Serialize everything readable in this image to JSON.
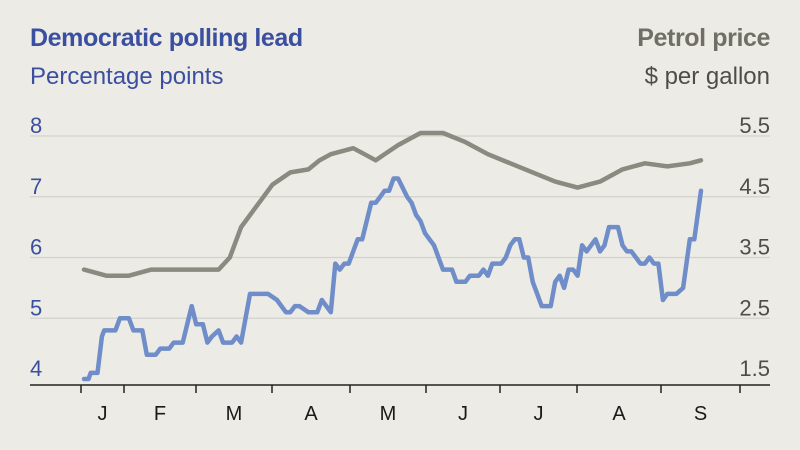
{
  "chart_data": {
    "type": "line",
    "title_left": "Democratic polling lead",
    "subtitle_left": "Percentage points",
    "title_right": "Petrol price",
    "subtitle_right": "$ per gallon",
    "left_axis": {
      "ticks": [
        "8",
        "7",
        "6",
        "5",
        "4"
      ],
      "ylim": [
        4,
        8
      ]
    },
    "right_axis": {
      "ticks": [
        "5.5",
        "4.5",
        "3.5",
        "2.5",
        "1.5"
      ],
      "ylim": [
        1.5,
        5.5
      ]
    },
    "x_labels": [
      "J",
      "F",
      "M",
      "A",
      "M",
      "J",
      "J",
      "A",
      "S"
    ],
    "grid": true,
    "colors": {
      "polling": "#6f8dc9",
      "petrol": "#8a8a80",
      "left_text": "#3a4fa0",
      "right_text": "#4e4e47",
      "grid": "#d3d1ca",
      "axis": "#222222"
    },
    "series": [
      {
        "key": "polling",
        "axis": "left",
        "points": [
          [
            0.0,
            4.0
          ],
          [
            0.1,
            4.0
          ],
          [
            0.15,
            4.1
          ],
          [
            0.3,
            4.1
          ],
          [
            0.4,
            4.7
          ],
          [
            0.45,
            4.8
          ],
          [
            0.7,
            4.8
          ],
          [
            0.8,
            5.0
          ],
          [
            1.0,
            5.0
          ],
          [
            1.1,
            4.8
          ],
          [
            1.3,
            4.8
          ],
          [
            1.4,
            4.4
          ],
          [
            1.6,
            4.4
          ],
          [
            1.7,
            4.5
          ],
          [
            1.9,
            4.5
          ],
          [
            2.0,
            4.6
          ],
          [
            2.2,
            4.6
          ],
          [
            2.3,
            4.9
          ],
          [
            2.4,
            5.2
          ],
          [
            2.5,
            4.9
          ],
          [
            2.65,
            4.9
          ],
          [
            2.75,
            4.6
          ],
          [
            2.85,
            4.7
          ],
          [
            3.0,
            4.8
          ],
          [
            3.1,
            4.6
          ],
          [
            3.3,
            4.6
          ],
          [
            3.4,
            4.7
          ],
          [
            3.5,
            4.6
          ],
          [
            3.7,
            5.4
          ],
          [
            3.9,
            5.4
          ],
          [
            4.0,
            5.4
          ],
          [
            4.1,
            5.4
          ],
          [
            4.3,
            5.3
          ],
          [
            4.4,
            5.2
          ],
          [
            4.5,
            5.1
          ],
          [
            4.6,
            5.1
          ],
          [
            4.7,
            5.2
          ],
          [
            4.8,
            5.2
          ],
          [
            5.0,
            5.1
          ],
          [
            5.2,
            5.1
          ],
          [
            5.3,
            5.3
          ],
          [
            5.4,
            5.2
          ],
          [
            5.5,
            5.1
          ],
          [
            5.6,
            5.9
          ],
          [
            5.7,
            5.8
          ],
          [
            5.8,
            5.9
          ],
          [
            5.9,
            5.9
          ],
          [
            6.0,
            6.1
          ],
          [
            6.1,
            6.3
          ],
          [
            6.2,
            6.3
          ],
          [
            6.4,
            6.9
          ],
          [
            6.5,
            6.9
          ],
          [
            6.6,
            7.0
          ],
          [
            6.7,
            7.1
          ],
          [
            6.8,
            7.1
          ],
          [
            6.9,
            7.3
          ],
          [
            7.0,
            7.3
          ],
          [
            7.2,
            7.0
          ],
          [
            7.3,
            6.9
          ],
          [
            7.4,
            6.7
          ],
          [
            7.5,
            6.6
          ],
          [
            7.6,
            6.4
          ],
          [
            7.7,
            6.3
          ],
          [
            7.8,
            6.2
          ],
          [
            7.9,
            6.0
          ],
          [
            8.0,
            5.8
          ],
          [
            8.2,
            5.8
          ],
          [
            8.3,
            5.6
          ],
          [
            8.5,
            5.6
          ],
          [
            8.6,
            5.7
          ],
          [
            8.8,
            5.7
          ],
          [
            8.9,
            5.8
          ],
          [
            9.0,
            5.7
          ],
          [
            9.1,
            5.9
          ],
          [
            9.3,
            5.9
          ],
          [
            9.4,
            6.0
          ],
          [
            9.5,
            6.2
          ],
          [
            9.6,
            6.3
          ],
          [
            9.7,
            6.3
          ],
          [
            9.8,
            6.0
          ],
          [
            9.9,
            6.0
          ],
          [
            10.0,
            5.6
          ],
          [
            10.1,
            5.4
          ],
          [
            10.2,
            5.2
          ],
          [
            10.4,
            5.2
          ],
          [
            10.5,
            5.6
          ],
          [
            10.6,
            5.7
          ],
          [
            10.7,
            5.5
          ],
          [
            10.8,
            5.8
          ],
          [
            10.9,
            5.8
          ],
          [
            11.0,
            5.7
          ],
          [
            11.1,
            6.2
          ],
          [
            11.2,
            6.1
          ],
          [
            11.3,
            6.2
          ],
          [
            11.4,
            6.3
          ],
          [
            11.5,
            6.1
          ],
          [
            11.6,
            6.2
          ],
          [
            11.7,
            6.5
          ],
          [
            11.9,
            6.5
          ],
          [
            12.0,
            6.2
          ],
          [
            12.1,
            6.1
          ],
          [
            12.2,
            6.1
          ],
          [
            12.4,
            5.9
          ],
          [
            12.5,
            5.9
          ],
          [
            12.6,
            6.0
          ],
          [
            12.7,
            5.9
          ],
          [
            12.8,
            5.9
          ],
          [
            12.9,
            5.3
          ],
          [
            13.0,
            5.4
          ],
          [
            13.2,
            5.4
          ],
          [
            13.35,
            5.5
          ],
          [
            13.5,
            6.3
          ],
          [
            13.6,
            6.3
          ],
          [
            13.75,
            7.1
          ]
        ]
      },
      {
        "key": "petrol",
        "axis": "right",
        "points": [
          [
            0.0,
            3.3
          ],
          [
            0.5,
            3.2
          ],
          [
            1.0,
            3.2
          ],
          [
            1.5,
            3.3
          ],
          [
            2.0,
            3.3
          ],
          [
            2.5,
            3.3
          ],
          [
            3.0,
            3.3
          ],
          [
            3.25,
            3.5
          ],
          [
            3.5,
            4.0
          ],
          [
            4.0,
            4.5
          ],
          [
            4.2,
            4.7
          ],
          [
            4.6,
            4.9
          ],
          [
            5.0,
            4.95
          ],
          [
            5.25,
            5.1
          ],
          [
            5.5,
            5.2
          ],
          [
            6.0,
            5.3
          ],
          [
            6.25,
            5.2
          ],
          [
            6.5,
            5.1
          ],
          [
            6.7,
            5.2
          ],
          [
            7.0,
            5.35
          ],
          [
            7.5,
            5.55
          ],
          [
            8.0,
            5.55
          ],
          [
            8.5,
            5.4
          ],
          [
            9.0,
            5.2
          ],
          [
            9.5,
            5.05
          ],
          [
            10.0,
            4.9
          ],
          [
            10.5,
            4.75
          ],
          [
            11.0,
            4.65
          ],
          [
            11.5,
            4.75
          ],
          [
            12.0,
            4.95
          ],
          [
            12.5,
            5.05
          ],
          [
            13.0,
            5.0
          ],
          [
            13.5,
            5.05
          ],
          [
            13.75,
            5.1
          ]
        ]
      }
    ]
  }
}
